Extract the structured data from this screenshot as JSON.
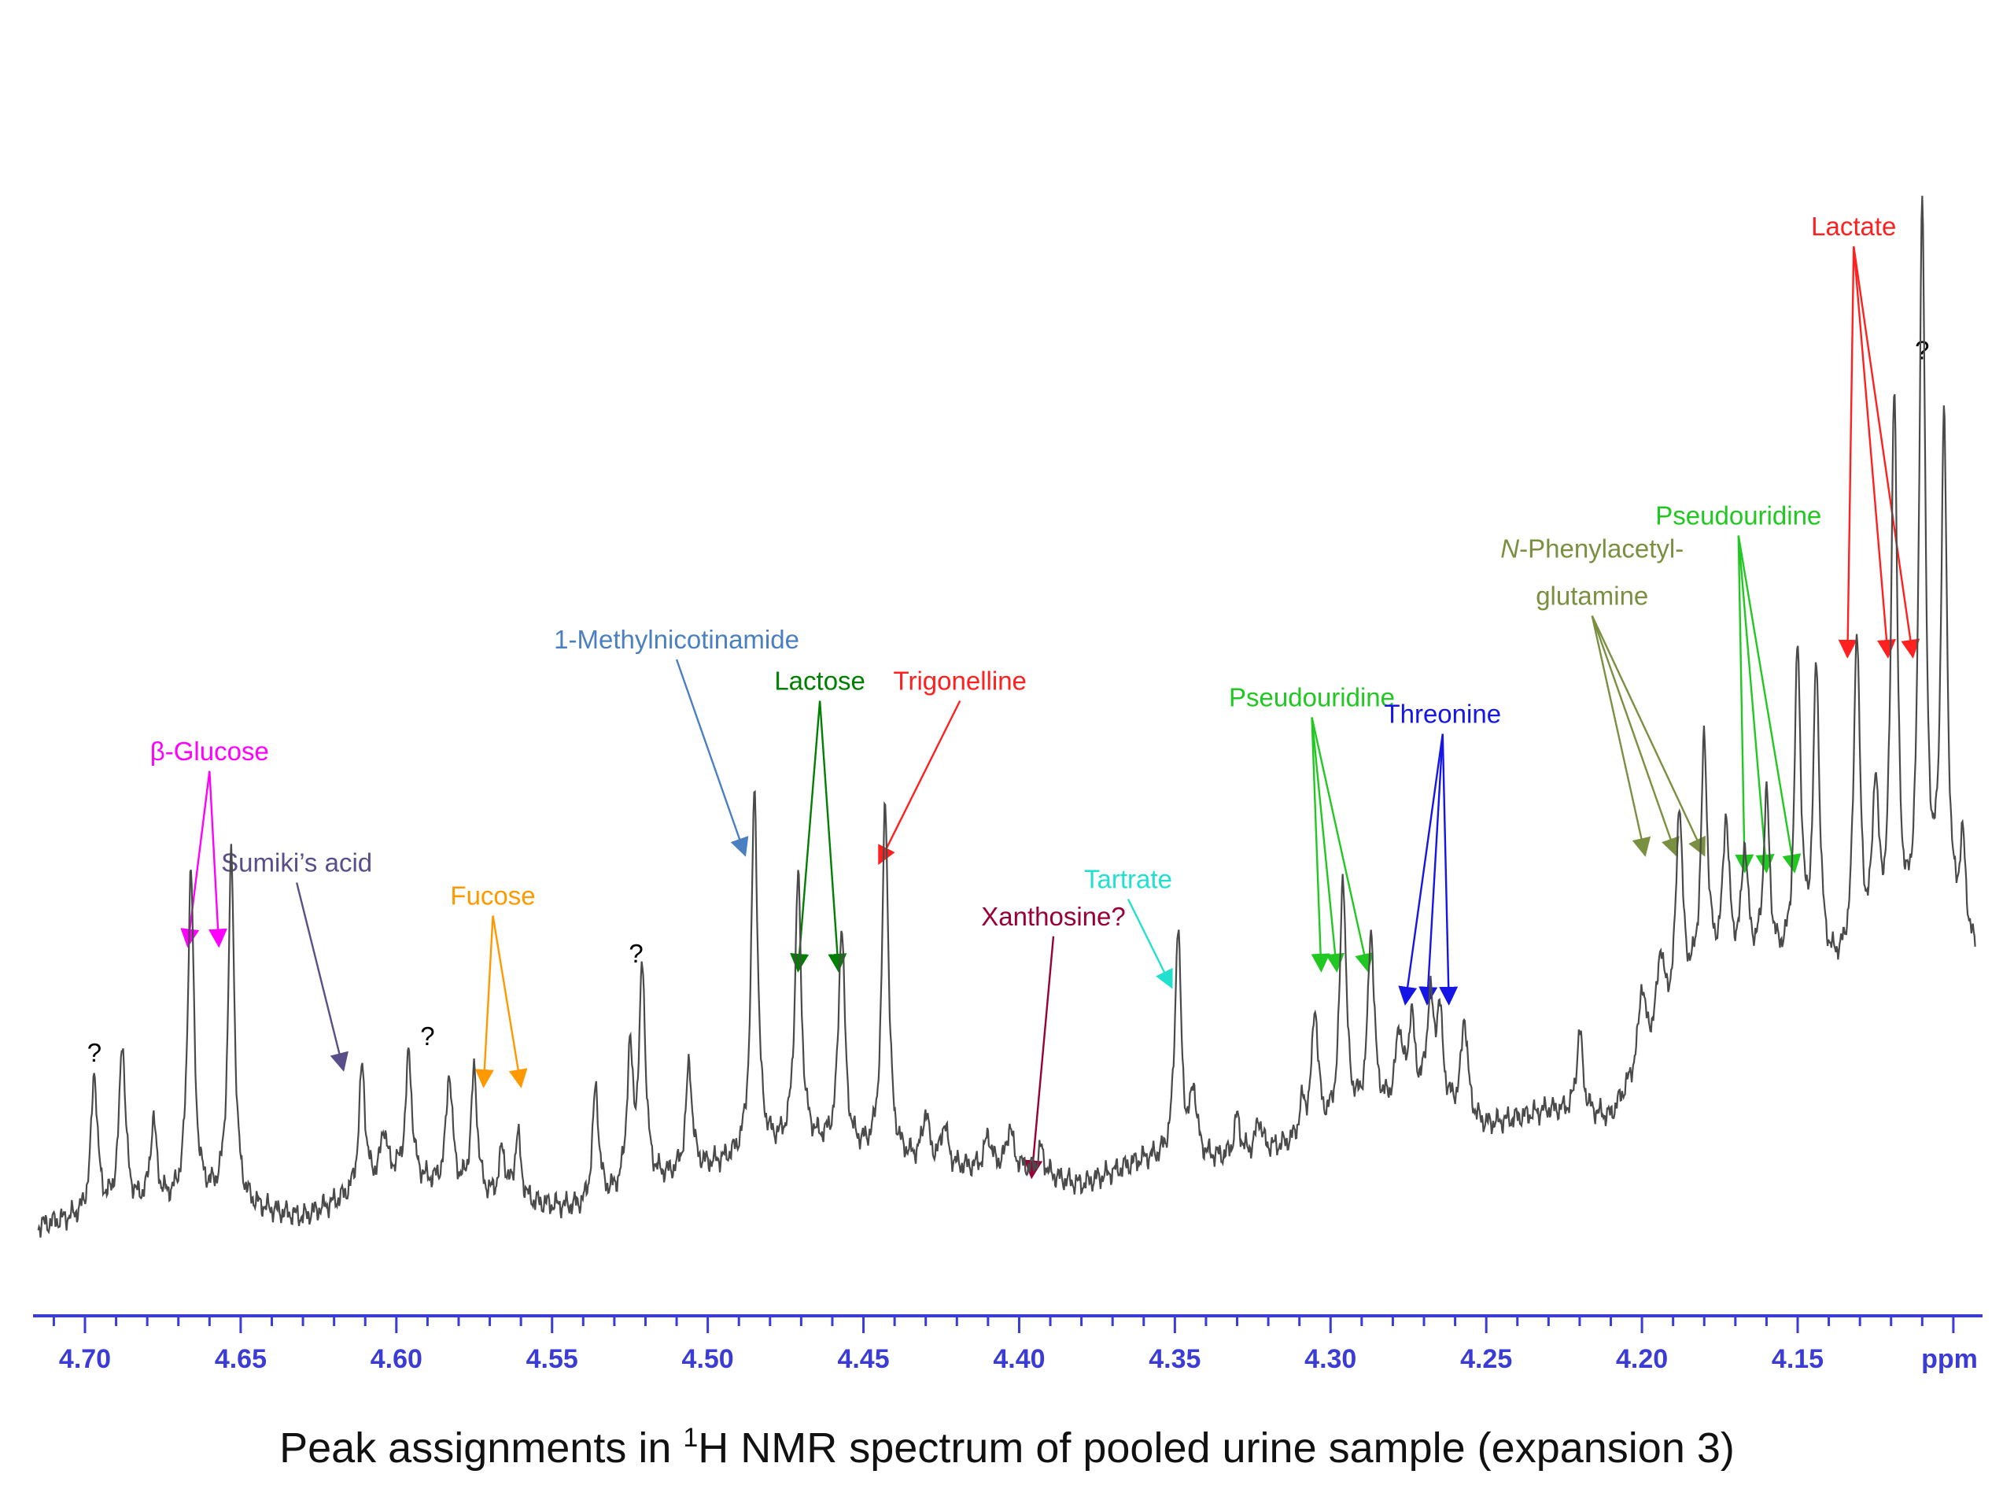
{
  "chart_data": {
    "type": "line",
    "title": "",
    "xlabel": "ppm",
    "ylabel": "",
    "xlim": [
      4.715,
      4.093
    ],
    "x_reversed": true,
    "x_ticks": [
      4.7,
      4.65,
      4.6,
      4.55,
      4.5,
      4.45,
      4.4,
      4.35,
      4.3,
      4.25,
      4.2,
      4.15
    ],
    "x_tick_labels": [
      "4.70",
      "4.65",
      "4.60",
      "4.55",
      "4.50",
      "4.45",
      "4.40",
      "4.35",
      "4.30",
      "4.25",
      "4.20",
      "4.15"
    ],
    "unit_label": "ppm",
    "baseline": [
      [
        4.715,
        0.02
      ],
      [
        4.69,
        0.04
      ],
      [
        4.66,
        0.05
      ],
      [
        4.63,
        0.03
      ],
      [
        4.6,
        0.08
      ],
      [
        4.57,
        0.05
      ],
      [
        4.54,
        0.04
      ],
      [
        4.51,
        0.08
      ],
      [
        4.49,
        0.1
      ],
      [
        4.47,
        0.12
      ],
      [
        4.44,
        0.1
      ],
      [
        4.42,
        0.09
      ],
      [
        4.4,
        0.09
      ],
      [
        4.38,
        0.07
      ],
      [
        4.36,
        0.1
      ],
      [
        4.33,
        0.1
      ],
      [
        4.31,
        0.12
      ],
      [
        4.29,
        0.15
      ],
      [
        4.27,
        0.17
      ],
      [
        4.25,
        0.14
      ],
      [
        4.23,
        0.16
      ],
      [
        4.21,
        0.15
      ],
      [
        4.195,
        0.25
      ],
      [
        4.18,
        0.32
      ],
      [
        4.16,
        0.33
      ],
      [
        4.14,
        0.32
      ],
      [
        4.12,
        0.33
      ],
      [
        4.1,
        0.35
      ],
      [
        4.093,
        0.34
      ]
    ],
    "peaks": [
      {
        "ppm": 4.697,
        "h": 0.17
      },
      {
        "ppm": 4.688,
        "h": 0.2
      },
      {
        "ppm": 4.678,
        "h": 0.1
      },
      {
        "ppm": 4.666,
        "h": 0.4
      },
      {
        "ppm": 4.653,
        "h": 0.42
      },
      {
        "ppm": 4.611,
        "h": 0.15
      },
      {
        "ppm": 4.604,
        "h": 0.06
      },
      {
        "ppm": 4.596,
        "h": 0.15
      },
      {
        "ppm": 4.583,
        "h": 0.14
      },
      {
        "ppm": 4.575,
        "h": 0.15
      },
      {
        "ppm": 4.566,
        "h": 0.06
      },
      {
        "ppm": 4.561,
        "h": 0.08
      },
      {
        "ppm": 4.536,
        "h": 0.14
      },
      {
        "ppm": 4.525,
        "h": 0.16
      },
      {
        "ppm": 4.521,
        "h": 0.26
      },
      {
        "ppm": 4.506,
        "h": 0.13
      },
      {
        "ppm": 4.485,
        "h": 0.44
      },
      {
        "ppm": 4.471,
        "h": 0.32
      },
      {
        "ppm": 4.457,
        "h": 0.27
      },
      {
        "ppm": 4.443,
        "h": 0.43
      },
      {
        "ppm": 4.43,
        "h": 0.06
      },
      {
        "ppm": 4.424,
        "h": 0.05
      },
      {
        "ppm": 4.41,
        "h": 0.04
      },
      {
        "ppm": 4.403,
        "h": 0.05
      },
      {
        "ppm": 4.393,
        "h": 0.03
      },
      {
        "ppm": 4.349,
        "h": 0.28
      },
      {
        "ppm": 4.344,
        "h": 0.08
      },
      {
        "ppm": 4.33,
        "h": 0.05
      },
      {
        "ppm": 4.323,
        "h": 0.04
      },
      {
        "ppm": 4.309,
        "h": 0.04
      },
      {
        "ppm": 4.305,
        "h": 0.15
      },
      {
        "ppm": 4.296,
        "h": 0.3
      },
      {
        "ppm": 4.287,
        "h": 0.22
      },
      {
        "ppm": 4.278,
        "h": 0.09
      },
      {
        "ppm": 4.274,
        "h": 0.1
      },
      {
        "ppm": 4.268,
        "h": 0.12
      },
      {
        "ppm": 4.265,
        "h": 0.11
      },
      {
        "ppm": 4.257,
        "h": 0.12
      },
      {
        "ppm": 4.22,
        "h": 0.1
      },
      {
        "ppm": 4.2,
        "h": 0.09
      },
      {
        "ppm": 4.194,
        "h": 0.09
      },
      {
        "ppm": 4.188,
        "h": 0.24
      },
      {
        "ppm": 4.18,
        "h": 0.28
      },
      {
        "ppm": 4.173,
        "h": 0.18
      },
      {
        "ppm": 4.167,
        "h": 0.14
      },
      {
        "ppm": 4.16,
        "h": 0.2
      },
      {
        "ppm": 4.15,
        "h": 0.38
      },
      {
        "ppm": 4.144,
        "h": 0.36
      },
      {
        "ppm": 4.131,
        "h": 0.4
      },
      {
        "ppm": 4.125,
        "h": 0.2
      },
      {
        "ppm": 4.119,
        "h": 0.68
      },
      {
        "ppm": 4.11,
        "h": 0.9
      },
      {
        "ppm": 4.103,
        "h": 0.62
      },
      {
        "ppm": 4.097,
        "h": 0.12
      }
    ],
    "annotations": [
      {
        "text": "β-Glucose",
        "color": "#ff00ff",
        "ppm": 4.66,
        "label_y": 0.585,
        "targets": [
          4.667,
          4.657
        ],
        "target_y": 0.36
      },
      {
        "text": "Sumiki’s acid",
        "color": "#5a4e8a",
        "ppm": 4.632,
        "label_y": 0.45,
        "targets": [
          4.617
        ],
        "target_y": 0.21
      },
      {
        "text": "?",
        "color": "#000000",
        "ppm": 4.697,
        "label_y": 0.22
      },
      {
        "text": "?",
        "color": "#000000",
        "ppm": 4.59,
        "label_y": 0.24
      },
      {
        "text": "Fucose",
        "color": "#ff9900",
        "ppm": 4.569,
        "label_y": 0.41,
        "targets": [
          4.572,
          4.56
        ],
        "target_y": 0.19
      },
      {
        "text": "?",
        "color": "#000000",
        "ppm": 4.523,
        "label_y": 0.34
      },
      {
        "text": "1-Methylnicotinamide",
        "color": "#4a7fc1",
        "ppm": 4.51,
        "label_y": 0.72,
        "targets": [
          4.488
        ],
        "target_y": 0.47
      },
      {
        "text": "Lactose",
        "color": "#008000",
        "ppm": 4.464,
        "label_y": 0.67,
        "targets": [
          4.471,
          4.458
        ],
        "target_y": 0.33
      },
      {
        "text": "Trigonelline",
        "color": "#ff2020",
        "ppm": 4.419,
        "label_y": 0.67,
        "targets": [
          4.445
        ],
        "target_y": 0.46
      },
      {
        "text": "Xanthosine?",
        "color": "#990033",
        "ppm": 4.389,
        "label_y": 0.385,
        "targets": [
          4.396
        ],
        "target_y": 0.08
      },
      {
        "text": "Tartrate",
        "color": "#22e0d0",
        "ppm": 4.365,
        "label_y": 0.43,
        "targets": [
          4.351
        ],
        "target_y": 0.31
      },
      {
        "text": "Pseudouridine",
        "color": "#22c822",
        "ppm": 4.306,
        "label_y": 0.65,
        "targets": [
          4.303,
          4.298,
          4.288
        ],
        "target_y": 0.33
      },
      {
        "text": "Threonine",
        "color": "#1515e6",
        "ppm": 4.264,
        "label_y": 0.63,
        "targets": [
          4.276,
          4.269,
          4.262
        ],
        "target_y": 0.29
      },
      {
        "text": "N-Phenylacetyl-",
        "text_italic": "N",
        "text_rest": "-Phenylacetyl-",
        "text2": "glutamine",
        "color": "#7a9040",
        "ppm": 4.216,
        "label_y": 0.83,
        "targets": [
          4.199,
          4.189,
          4.18
        ],
        "target_y": 0.47
      },
      {
        "text": "Pseudouridine",
        "color": "#22c822",
        "ppm": 4.169,
        "label_y": 0.87,
        "targets": [
          4.167,
          4.16,
          4.151
        ],
        "target_y": 0.45
      },
      {
        "text": "Lactate",
        "color": "#ff2020",
        "ppm": 4.132,
        "label_y": 1.22,
        "targets": [
          4.134,
          4.121,
          4.113
        ],
        "target_y": 0.71
      },
      {
        "text": "?",
        "color": "#000000",
        "ppm": 4.11,
        "label_y": 1.07
      }
    ]
  },
  "caption": {
    "prefix": "Peak assignments in ",
    "superscript": "1",
    "suffix": "H NMR spectrum of pooled urine sample (expansion 3)"
  }
}
